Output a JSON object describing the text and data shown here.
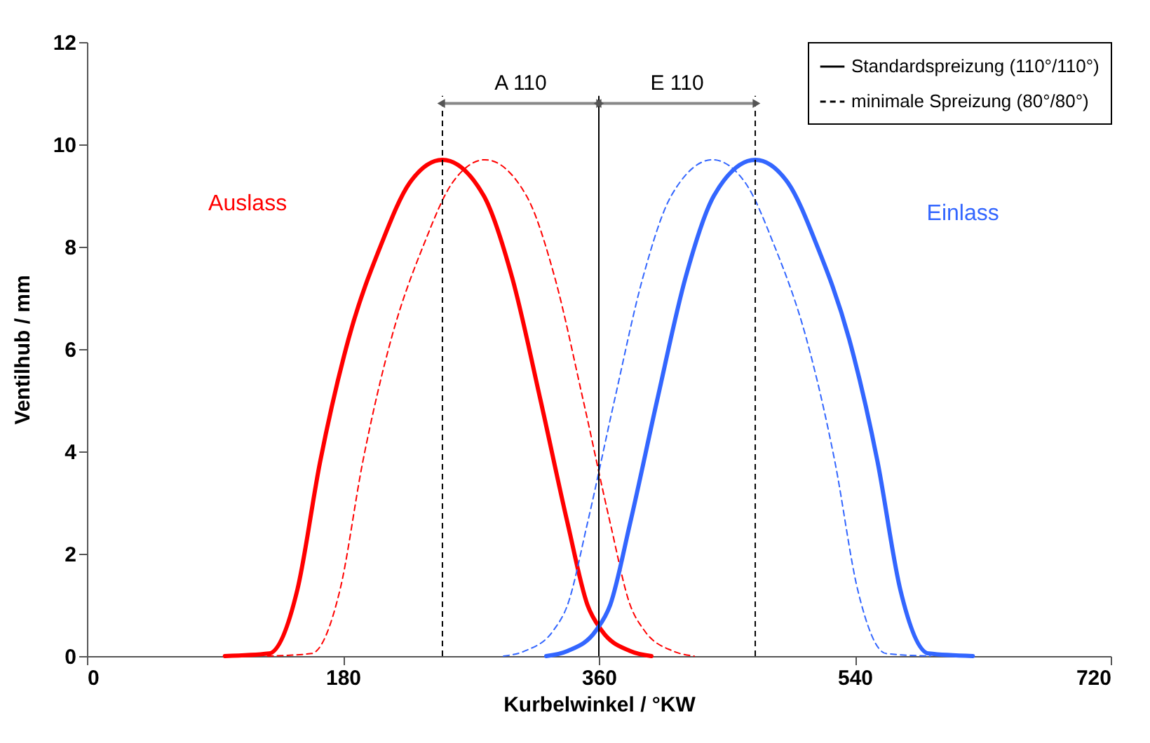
{
  "chart_data": {
    "type": "line",
    "xlabel": "Kurbelwinkel / °KW",
    "ylabel": "Ventilhub / mm",
    "xlim": [
      0,
      720
    ],
    "xticks": [
      0,
      180,
      360,
      540,
      720
    ],
    "ylim": [
      0,
      12
    ],
    "yticks": [
      0,
      2,
      4,
      6,
      8,
      10,
      12
    ],
    "grid": false,
    "legend": "top right",
    "marker": "none",
    "series": [
      {
        "name": "Standardspreizung (110°/110°)",
        "color": "#ff0000",
        "line_style": "solid",
        "x": [
          97,
          128,
          148,
          164,
          184,
          207,
          227,
          250,
          279,
          299,
          319,
          338,
          352,
          362,
          382,
          397
        ],
        "values": [
          0,
          0.05,
          1.3,
          3.8,
          6.2,
          8.05,
          9.25,
          9.7,
          9.0,
          7.4,
          5.0,
          2.6,
          1.0,
          0.5,
          0.1,
          0
        ]
      },
      {
        "name": "minimale Spreizung (80°/80°)",
        "color": "#ff0000",
        "line_style": "dashed",
        "x": [
          127,
          158,
          178,
          194,
          214,
          237,
          257,
          280,
          309,
          329,
          349,
          368,
          382,
          392,
          412,
          427
        ],
        "values": [
          0,
          0.05,
          1.3,
          3.8,
          6.2,
          8.05,
          9.25,
          9.7,
          9.0,
          7.4,
          5.0,
          2.6,
          1.0,
          0.5,
          0.1,
          0
        ]
      },
      {
        "color": "#3366ff",
        "line_style": "solid",
        "x": [
          323,
          338,
          358,
          368,
          382,
          401,
          421,
          441,
          470,
          493,
          513,
          536,
          556,
          572,
          592,
          623
        ],
        "values": [
          0,
          0.1,
          0.5,
          1.0,
          2.6,
          5.0,
          7.4,
          9.0,
          9.7,
          9.25,
          8.05,
          6.2,
          3.8,
          1.3,
          0.05,
          0
        ]
      },
      {
        "color": "#3366ff",
        "line_style": "dashed",
        "x": [
          293,
          308,
          328,
          338,
          352,
          371,
          391,
          411,
          440,
          463,
          483,
          506,
          526,
          542,
          562,
          593
        ],
        "values": [
          0,
          0.1,
          0.5,
          1.0,
          2.6,
          5.0,
          7.4,
          9.0,
          9.7,
          9.25,
          8.05,
          6.2,
          3.8,
          1.3,
          0.05,
          0
        ]
      }
    ],
    "ref_lines": [
      {
        "axis": "x",
        "value": 250,
        "color": "#000000",
        "line_style": "dashed"
      },
      {
        "axis": "x",
        "value": 360,
        "color": "#000000",
        "line_style": "solid"
      },
      {
        "axis": "x",
        "value": 470,
        "color": "#000000",
        "line_style": "dashed"
      }
    ],
    "annotations": [
      "Auslass",
      "Einlass",
      "A 110",
      "E 110"
    ]
  }
}
